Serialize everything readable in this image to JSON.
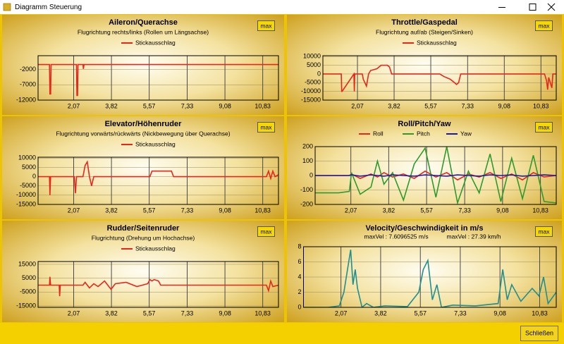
{
  "window": {
    "title": "Diagramm Steuerung",
    "close_button": "Schließen"
  },
  "chart_data": [
    {
      "type": "line",
      "title": "Aileron/Querachse",
      "subtitle": "Flugrichtung rechts/links (Rollen um Längsachse)",
      "button": "max",
      "legend": true,
      "x": [
        0.42,
        0.95,
        0.97,
        1.0,
        1.02,
        2.2,
        2.22,
        2.25,
        2.27,
        2.5,
        2.52,
        2.55,
        4,
        6,
        8,
        10,
        11.56
      ],
      "series": [
        {
          "name": "Stickausschlag",
          "color": "#e8261c",
          "values": [
            -400,
            -400,
            -10000,
            -10000,
            -400,
            -400,
            -10500,
            -10500,
            -400,
            -400,
            -1800,
            -400,
            -400,
            -400,
            -400,
            -400,
            -400
          ]
        }
      ],
      "xlim": [
        0.42,
        11.56
      ],
      "xticks": [
        {
          "value": 2.07,
          "label": "2,07"
        },
        {
          "value": 3.82,
          "label": "3,82"
        },
        {
          "value": 5.57,
          "label": "5,57"
        },
        {
          "value": 7.33,
          "label": "7,33"
        },
        {
          "value": 9.08,
          "label": "9,08"
        },
        {
          "value": 10.83,
          "label": "10,83"
        }
      ],
      "ylim": [
        -12000,
        2500
      ],
      "yticks": [
        -2000,
        -7000,
        -12000
      ],
      "grid": true
    },
    {
      "type": "line",
      "title": "Throttle/Gaspedal",
      "subtitle": "Flugrichtung auf/ab (Steigen/Sinken)",
      "button": "max",
      "legend": true,
      "x": [
        0.42,
        1.3,
        1.32,
        1.34,
        1.9,
        1.92,
        1.94,
        2.3,
        2.35,
        2.5,
        2.6,
        2.7,
        3.0,
        3.2,
        3.5,
        3.6,
        3.7,
        4.0,
        5.0,
        6.0,
        6.2,
        6.5,
        6.6,
        6.8,
        6.9,
        7.0,
        11.0,
        11.1,
        11.15,
        11.2,
        11.3,
        11.35,
        11.4,
        11.56
      ],
      "series": [
        {
          "name": "Stickausschlag",
          "color": "#e8261c",
          "values": [
            0,
            0,
            -10000,
            -10000,
            0,
            -10000,
            0,
            0,
            -3000,
            -7000,
            0,
            2000,
            3000,
            5000,
            5000,
            4000,
            0,
            0,
            0,
            0,
            -1500,
            -3000,
            -4000,
            -6000,
            -5000,
            0,
            0,
            -4000,
            -9000,
            -2000,
            -6000,
            -8000,
            0,
            0
          ]
        }
      ],
      "xlim": [
        0.42,
        11.56
      ],
      "xticks": [
        {
          "value": 2.07,
          "label": "2,07"
        },
        {
          "value": 3.82,
          "label": "3,82"
        },
        {
          "value": 5.57,
          "label": "5,57"
        },
        {
          "value": 7.33,
          "label": "7,33"
        },
        {
          "value": 9.08,
          "label": "9,08"
        },
        {
          "value": 10.83,
          "label": "10,83"
        }
      ],
      "ylim": [
        -15000,
        10500
      ],
      "yticks": [
        10000,
        5000,
        0,
        -5000,
        -10000,
        -15000
      ],
      "grid": true
    },
    {
      "type": "line",
      "title": "Elevator/Höhenruder",
      "subtitle": "Flugrichtung vorwärts/rückwärts (Nickbewegung über Querachse)",
      "button": "max",
      "legend": true,
      "x": [
        0.42,
        0.95,
        0.97,
        1.0,
        2.1,
        2.15,
        2.2,
        2.5,
        2.6,
        2.7,
        2.8,
        2.9,
        3.0,
        5.6,
        5.7,
        6.5,
        6.6,
        6.7,
        11.0,
        11.1,
        11.2,
        11.3,
        11.4,
        11.56
      ],
      "series": [
        {
          "name": "Stickausschlag",
          "color": "#e8261c",
          "values": [
            0,
            0,
            -10000,
            0,
            0,
            -9000,
            0,
            0,
            6000,
            8000,
            0,
            -5000,
            0,
            0,
            3000,
            3000,
            3000,
            0,
            0,
            3000,
            -1000,
            3000,
            0,
            1000
          ]
        }
      ],
      "xlim": [
        0.42,
        11.56
      ],
      "xticks": [
        {
          "value": 2.07,
          "label": "2,07"
        },
        {
          "value": 3.82,
          "label": "3,82"
        },
        {
          "value": 5.57,
          "label": "5,57"
        },
        {
          "value": 7.33,
          "label": "7,33"
        },
        {
          "value": 9.08,
          "label": "9,08"
        },
        {
          "value": 10.83,
          "label": "10,83"
        }
      ],
      "ylim": [
        -15000,
        10500
      ],
      "yticks": [
        10000,
        5000,
        0,
        -5000,
        -10000,
        -15000
      ],
      "grid": true
    },
    {
      "type": "line",
      "title": "Roll/Pitch/Yaw",
      "button": "max",
      "legend": true,
      "x": [
        0.42,
        1.0,
        1.5,
        2.0,
        2.1,
        2.5,
        3.0,
        3.3,
        3.6,
        4.0,
        4.5,
        5.0,
        5.5,
        6.0,
        6.5,
        7.0,
        7.5,
        8.0,
        8.5,
        9.0,
        9.5,
        10.0,
        10.5,
        11.0,
        11.56
      ],
      "series": [
        {
          "name": "Roll",
          "color": "#e8261c",
          "values": [
            0,
            0,
            0,
            0,
            10,
            -20,
            10,
            -10,
            20,
            -10,
            10,
            -20,
            30,
            -10,
            20,
            -30,
            10,
            -10,
            20,
            -20,
            10,
            -30,
            20,
            -10,
            0
          ]
        },
        {
          "name": "Pitch",
          "color": "#2e9a2e",
          "values": [
            -120,
            -120,
            -120,
            -110,
            20,
            -130,
            -80,
            100,
            -60,
            20,
            -170,
            80,
            190,
            -150,
            200,
            -190,
            30,
            -120,
            150,
            -180,
            120,
            -160,
            140,
            -180,
            -190
          ]
        },
        {
          "name": "Yaw",
          "color": "#1a1aa8",
          "values": [
            0,
            0,
            0,
            0,
            5,
            -5,
            5,
            0,
            -5,
            5,
            0,
            -5,
            5,
            0,
            -5,
            5,
            0,
            -5,
            5,
            0,
            5,
            -5,
            0,
            5,
            0
          ]
        }
      ],
      "xlim": [
        0.42,
        11.56
      ],
      "xticks": [
        {
          "value": 2.07,
          "label": "2,07"
        },
        {
          "value": 3.82,
          "label": "3,82"
        },
        {
          "value": 5.57,
          "label": "5,57"
        },
        {
          "value": 7.33,
          "label": "7,33"
        },
        {
          "value": 9.08,
          "label": "9,08"
        },
        {
          "value": 10.83,
          "label": "10,83"
        }
      ],
      "ylim": [
        -200,
        200
      ],
      "yticks": [
        200,
        100,
        0,
        -100,
        -200
      ],
      "grid": true
    },
    {
      "type": "line",
      "title": "Rudder/Seitenruder",
      "subtitle": "Flugrichtung (Drehung um Hochachse)",
      "button": "max",
      "legend": true,
      "x": [
        0.42,
        0.95,
        0.97,
        1.0,
        1.4,
        1.42,
        1.45,
        2.5,
        2.6,
        2.8,
        3.0,
        3.2,
        3.5,
        3.8,
        4.0,
        4.5,
        5.0,
        5.5,
        5.6,
        5.7,
        5.8,
        6.0,
        6.1,
        11.0,
        11.1,
        11.2,
        11.3,
        11.56
      ],
      "series": [
        {
          "name": "Stickausschlag",
          "color": "#e8261c",
          "values": [
            0,
            0,
            6000,
            0,
            0,
            -8000,
            0,
            0,
            2000,
            -2000,
            1000,
            -1000,
            3000,
            -3000,
            1000,
            2000,
            -1000,
            1000,
            4000,
            3000,
            4000,
            3000,
            0,
            0,
            -4000,
            3000,
            -1000,
            0
          ]
        }
      ],
      "xlim": [
        0.42,
        11.56
      ],
      "xticks": [
        {
          "value": 2.07,
          "label": "2,07"
        },
        {
          "value": 3.82,
          "label": "3,82"
        },
        {
          "value": 5.57,
          "label": "5,57"
        },
        {
          "value": 7.33,
          "label": "7,33"
        },
        {
          "value": 9.08,
          "label": "9,08"
        },
        {
          "value": 10.83,
          "label": "10,83"
        }
      ],
      "ylim": [
        -16000,
        17000
      ],
      "yticks": [
        15000,
        5000,
        -5000,
        -15000
      ],
      "grid": true
    },
    {
      "type": "line",
      "title": "Velocity/Geschwindigkeit  in m/s",
      "annotations": [
        "maxVel :  7.6096525  m/s",
        "maxVel :  27.39  km/h"
      ],
      "button": "max",
      "legend": false,
      "x": [
        0.42,
        1.5,
        2.0,
        2.2,
        2.5,
        2.6,
        2.7,
        2.8,
        3.0,
        3.2,
        3.5,
        4.0,
        5.0,
        5.5,
        5.7,
        5.9,
        6.1,
        6.3,
        6.5,
        7.0,
        8.0,
        9.0,
        9.2,
        9.4,
        9.6,
        10.0,
        10.5,
        10.8,
        11.0,
        11.2,
        11.56
      ],
      "series": [
        {
          "color": "#1f8f8f",
          "values": [
            0,
            0,
            0.2,
            2,
            7.6,
            3,
            5,
            2.5,
            0,
            0.5,
            0,
            0.2,
            0.1,
            2,
            5,
            6.2,
            1,
            3,
            0,
            0.3,
            0.2,
            0.5,
            5,
            1,
            3,
            0.8,
            2.5,
            1.5,
            4,
            0.5,
            2
          ]
        }
      ],
      "xlim": [
        0.42,
        11.56
      ],
      "xticks": [
        {
          "value": 2.07,
          "label": "2,07"
        },
        {
          "value": 3.82,
          "label": "3,82"
        },
        {
          "value": 5.57,
          "label": "5,57"
        },
        {
          "value": 7.33,
          "label": "7,33"
        },
        {
          "value": 9.08,
          "label": "9,08"
        },
        {
          "value": 10.83,
          "label": "10,83"
        }
      ],
      "ylim": [
        0,
        8
      ],
      "yticks": [
        8,
        6,
        4,
        2,
        0
      ],
      "grid": true
    }
  ]
}
